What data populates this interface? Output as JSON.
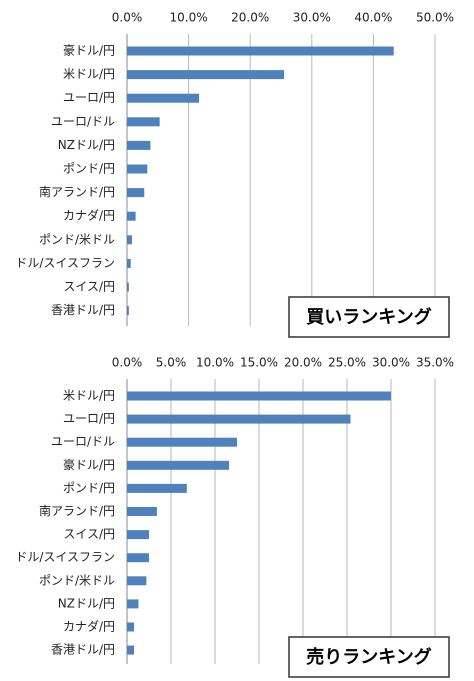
{
  "chart_data": [
    {
      "type": "bar",
      "orientation": "horizontal",
      "title": "買いランキング",
      "categories": [
        "豪ドル/円",
        "米ドル/円",
        "ユーロ/円",
        "ユーロ/ドル",
        "NZドル/円",
        "ポンド/円",
        "南アランド/円",
        "カナダ/円",
        "ポンド/米ドル",
        "ドル/スイスフラン",
        "スイス/円",
        "香港ドル/円"
      ],
      "values": [
        43.3,
        25.5,
        11.7,
        5.3,
        3.8,
        3.3,
        2.8,
        1.4,
        0.8,
        0.6,
        0.3,
        0.3
      ],
      "xlim": [
        0,
        50
      ],
      "ticks": [
        "0.0%",
        "10.0%",
        "20.0%",
        "30.0%",
        "40.0%",
        "50.0%"
      ],
      "tick_values": [
        0,
        10,
        20,
        30,
        40,
        50
      ],
      "grid": true,
      "axis_position": "top",
      "bar_color": "#4f81bd"
    },
    {
      "type": "bar",
      "orientation": "horizontal",
      "title": "売りランキング",
      "categories": [
        "米ドル/円",
        "ユーロ/円",
        "ユーロ/ドル",
        "豪ドル/円",
        "ポンド/円",
        "南アランド/円",
        "スイス/円",
        "ドル/スイスフラン",
        "ポンド/米ドル",
        "NZドル/円",
        "カナダ/円",
        "香港ドル/円"
      ],
      "values": [
        30.0,
        25.4,
        12.5,
        11.6,
        6.8,
        3.4,
        2.5,
        2.5,
        2.2,
        1.3,
        0.8,
        0.8
      ],
      "xlim": [
        0,
        35
      ],
      "ticks": [
        "0.0%",
        "5.0%",
        "10.0%",
        "15.0%",
        "20.0%",
        "25.0%",
        "30.0%",
        "35.0%"
      ],
      "tick_values": [
        0,
        5,
        10,
        15,
        20,
        25,
        30,
        35
      ],
      "grid": true,
      "axis_position": "top",
      "bar_color": "#4f81bd"
    }
  ]
}
